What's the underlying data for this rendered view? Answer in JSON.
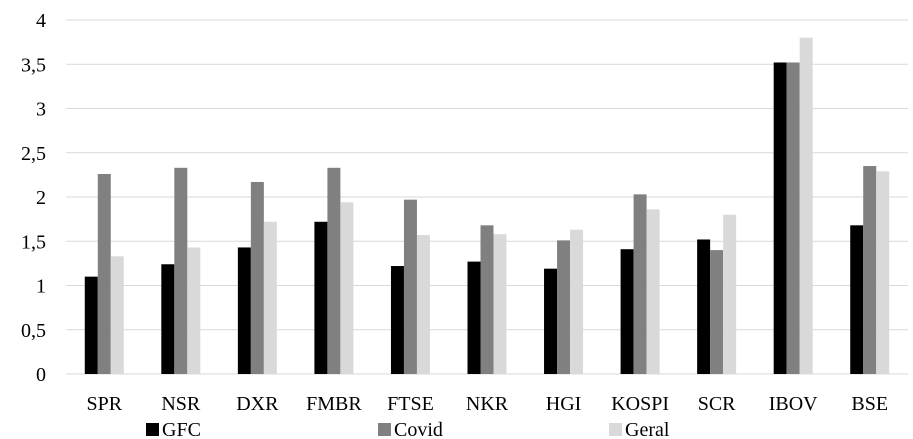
{
  "chart_data": {
    "type": "bar",
    "title": "",
    "xlabel": "",
    "ylabel": "",
    "categories": [
      "SPR",
      "NSR",
      "DXR",
      "FMBR",
      "FTSE",
      "NKR",
      "HGI",
      "KOSPI",
      "SCR",
      "IBOV",
      "BSE"
    ],
    "series": [
      {
        "name": "GFC",
        "color": "#000000",
        "values": [
          1.1,
          1.24,
          1.43,
          1.72,
          1.22,
          1.27,
          1.19,
          1.41,
          1.52,
          3.52,
          1.68
        ]
      },
      {
        "name": "Covid",
        "color": "#808080",
        "values": [
          2.26,
          2.33,
          2.17,
          2.33,
          1.97,
          1.68,
          1.51,
          2.03,
          1.4,
          3.52,
          2.35
        ]
      },
      {
        "name": "Geral",
        "color": "#d9d9d9",
        "values": [
          1.33,
          1.43,
          1.72,
          1.94,
          1.57,
          1.58,
          1.63,
          1.86,
          1.8,
          3.8,
          2.29
        ]
      }
    ],
    "ylim": [
      0,
      4
    ],
    "yticks": [
      "0",
      "0,5",
      "1",
      "1,5",
      "2",
      "2,5",
      "3",
      "3,5",
      "4"
    ],
    "grid": true,
    "legend_position": "bottom"
  }
}
